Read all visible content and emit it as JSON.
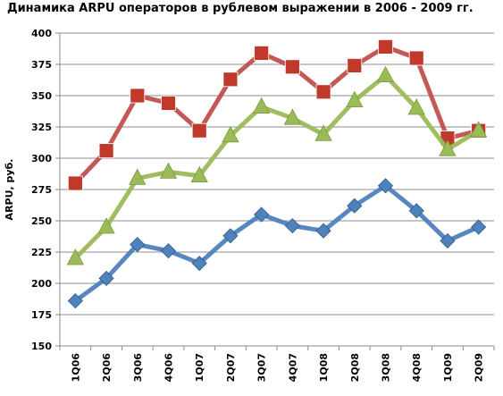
{
  "chart_data": {
    "type": "line",
    "title": "Динамика ARPU операторов в рублевом выражении в 2006 - 2009 гг.",
    "xlabel": "",
    "ylabel": "ARPU, руб.",
    "ylim": [
      150,
      400
    ],
    "yticks": [
      150,
      175,
      200,
      225,
      250,
      275,
      300,
      325,
      350,
      375,
      400
    ],
    "grid": true,
    "legend": "none",
    "categories": [
      "1Q06",
      "2Q06",
      "3Q06",
      "4Q06",
      "1Q07",
      "2Q07",
      "3Q07",
      "4Q07",
      "1Q08",
      "2Q08",
      "3Q08",
      "4Q08",
      "1Q09",
      "2Q09"
    ],
    "series": [
      {
        "color": "#c0392b",
        "line_color": "#c0504d",
        "marker": "square",
        "values": [
          280,
          306,
          350,
          344,
          322,
          363,
          384,
          373,
          353,
          374,
          389,
          380,
          316,
          322
        ]
      },
      {
        "color": "#9bbb59",
        "line_color": "#9bbb59",
        "marker": "triangle",
        "values": [
          220,
          245,
          284,
          289,
          286,
          318,
          341,
          332,
          319,
          346,
          366,
          340,
          307,
          322
        ]
      },
      {
        "color": "#4f81bd",
        "line_color": "#4f81bd",
        "marker": "diamond",
        "values": [
          186,
          204,
          231,
          226,
          216,
          238,
          255,
          246,
          242,
          262,
          278,
          258,
          234,
          245
        ]
      }
    ]
  }
}
